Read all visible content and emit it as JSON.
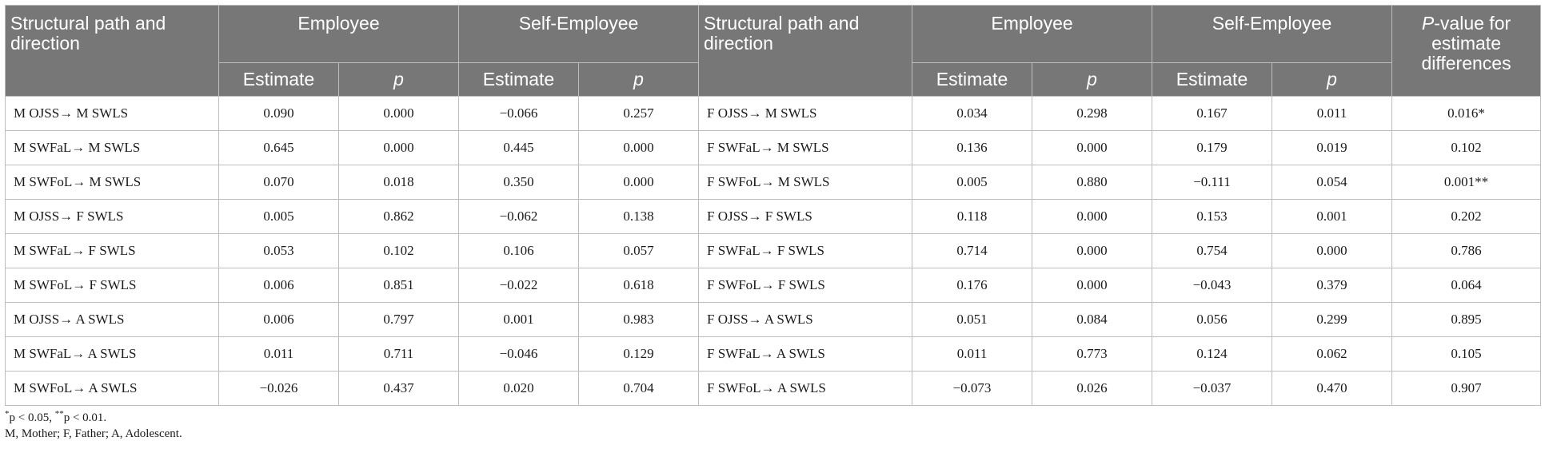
{
  "header": {
    "path_label": "Structural path and direction",
    "group_employee": "Employee",
    "group_self_employee": "Self-Employee",
    "estimate": "Estimate",
    "p": "p",
    "pvalue_italic": "P",
    "pvalue_rest": "-value for estimate differences"
  },
  "rows": [
    {
      "m_path": "M OJSS→ M SWLS",
      "m_emp_est": "0.090",
      "m_emp_p": "0.000",
      "m_self_est": "−0.066",
      "m_self_p": "0.257",
      "f_path": "F OJSS→ M SWLS",
      "f_emp_est": "0.034",
      "f_emp_p": "0.298",
      "f_self_est": "0.167",
      "f_self_p": "0.011",
      "pdiff": "0.016*"
    },
    {
      "m_path": "M SWFaL→ M SWLS",
      "m_emp_est": "0.645",
      "m_emp_p": "0.000",
      "m_self_est": "0.445",
      "m_self_p": "0.000",
      "f_path": "F SWFaL→ M SWLS",
      "f_emp_est": "0.136",
      "f_emp_p": "0.000",
      "f_self_est": "0.179",
      "f_self_p": "0.019",
      "pdiff": "0.102"
    },
    {
      "m_path": "M SWFoL→ M SWLS",
      "m_emp_est": "0.070",
      "m_emp_p": "0.018",
      "m_self_est": "0.350",
      "m_self_p": "0.000",
      "f_path": "F SWFoL→ M SWLS",
      "f_emp_est": "0.005",
      "f_emp_p": "0.880",
      "f_self_est": "−0.111",
      "f_self_p": "0.054",
      "pdiff": "0.001**"
    },
    {
      "m_path": "M OJSS→ F SWLS",
      "m_emp_est": "0.005",
      "m_emp_p": "0.862",
      "m_self_est": "−0.062",
      "m_self_p": "0.138",
      "f_path": "F OJSS→ F SWLS",
      "f_emp_est": "0.118",
      "f_emp_p": "0.000",
      "f_self_est": "0.153",
      "f_self_p": "0.001",
      "pdiff": "0.202"
    },
    {
      "m_path": "M SWFaL→ F SWLS",
      "m_emp_est": "0.053",
      "m_emp_p": "0.102",
      "m_self_est": "0.106",
      "m_self_p": "0.057",
      "f_path": "F SWFaL→ F SWLS",
      "f_emp_est": "0.714",
      "f_emp_p": "0.000",
      "f_self_est": "0.754",
      "f_self_p": "0.000",
      "pdiff": "0.786"
    },
    {
      "m_path": "M SWFoL→ F SWLS",
      "m_emp_est": "0.006",
      "m_emp_p": "0.851",
      "m_self_est": "−0.022",
      "m_self_p": "0.618",
      "f_path": "F SWFoL→ F SWLS",
      "f_emp_est": "0.176",
      "f_emp_p": "0.000",
      "f_self_est": "−0.043",
      "f_self_p": "0.379",
      "pdiff": "0.064"
    },
    {
      "m_path": "M OJSS→ A SWLS",
      "m_emp_est": "0.006",
      "m_emp_p": "0.797",
      "m_self_est": "0.001",
      "m_self_p": "0.983",
      "f_path": "F OJSS→ A SWLS",
      "f_emp_est": "0.051",
      "f_emp_p": "0.084",
      "f_self_est": "0.056",
      "f_self_p": "0.299",
      "pdiff": "0.895"
    },
    {
      "m_path": "M SWFaL→ A SWLS",
      "m_emp_est": "0.011",
      "m_emp_p": "0.711",
      "m_self_est": "−0.046",
      "m_self_p": "0.129",
      "f_path": "F SWFaL→ A SWLS",
      "f_emp_est": "0.011",
      "f_emp_p": "0.773",
      "f_self_est": "0.124",
      "f_self_p": "0.062",
      "pdiff": "0.105"
    },
    {
      "m_path": "M SWFoL→ A SWLS",
      "m_emp_est": "−0.026",
      "m_emp_p": "0.437",
      "m_self_est": "0.020",
      "m_self_p": "0.704",
      "f_path": "F SWFoL→ A SWLS",
      "f_emp_est": "−0.073",
      "f_emp_p": "0.026",
      "f_self_est": "−0.037",
      "f_self_p": "0.470",
      "pdiff": "0.907"
    }
  ],
  "footnotes": {
    "sig_a_mark": "*",
    "sig_a_text": "p < 0.05, ",
    "sig_b_mark": "**",
    "sig_b_text": "p < 0.01.",
    "abbrev": "M, Mother; F, Father; A, Adolescent."
  }
}
